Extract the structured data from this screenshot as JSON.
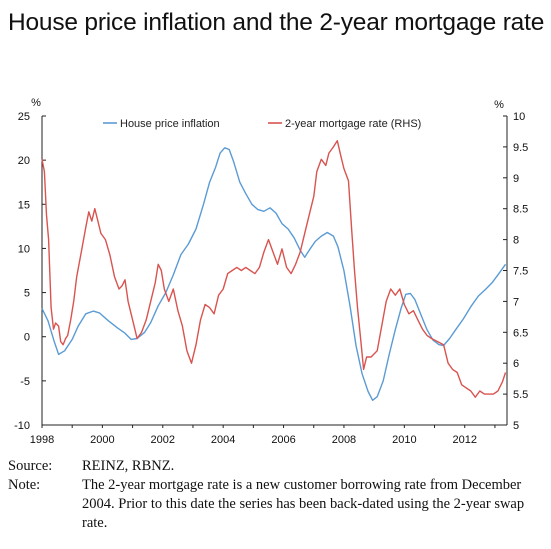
{
  "title": "House price inflation and the 2-year mortgage rate",
  "source_label": "Source:",
  "source_text": "REINZ, RBNZ.",
  "note_label": "Note:",
  "note_text": "The 2-year mortgage rate is a new customer borrowing rate from December 2004. Prior to this date the series has been back-dated using the 2-year swap rate.",
  "colors": {
    "house": "#5b9bd5",
    "mortgage": "#d9534f",
    "axis": "#222222"
  },
  "chart_data": {
    "type": "line",
    "left_unit": "%",
    "right_unit": "%",
    "xlim": [
      1998,
      2013.4
    ],
    "ylim_left": [
      -10,
      25
    ],
    "ylim_right": [
      5,
      10
    ],
    "x_ticks": [
      1998,
      2000,
      2002,
      2004,
      2006,
      2008,
      2010,
      2012
    ],
    "y_left_ticks": [
      -10,
      -5,
      0,
      5,
      10,
      15,
      20,
      25
    ],
    "y_right_ticks": [
      5,
      5.5,
      6,
      6.5,
      7,
      7.5,
      8,
      8.5,
      9,
      9.5,
      10
    ],
    "y_right_tick_labels": [
      "5",
      "5.5",
      "6",
      "6.5",
      "7",
      "7.5",
      "8",
      "8.5",
      "9",
      "9.5",
      "10"
    ],
    "legend_position": "top",
    "series": [
      {
        "name": "House price inflation",
        "axis": "left",
        "points": [
          [
            1998.0,
            3.2
          ],
          [
            1998.2,
            1.8
          ],
          [
            1998.4,
            -0.5
          ],
          [
            1998.55,
            -2.0
          ],
          [
            1998.75,
            -1.6
          ],
          [
            1999.0,
            -0.3
          ],
          [
            1999.2,
            1.2
          ],
          [
            1999.45,
            2.6
          ],
          [
            1999.7,
            2.9
          ],
          [
            1999.9,
            2.7
          ],
          [
            2000.2,
            1.8
          ],
          [
            2000.5,
            1.0
          ],
          [
            2000.75,
            0.4
          ],
          [
            2000.95,
            -0.3
          ],
          [
            2001.15,
            -0.2
          ],
          [
            2001.4,
            0.5
          ],
          [
            2001.6,
            1.6
          ],
          [
            2001.85,
            3.5
          ],
          [
            2002.1,
            5.0
          ],
          [
            2002.35,
            7.0
          ],
          [
            2002.6,
            9.3
          ],
          [
            2002.85,
            10.5
          ],
          [
            2003.1,
            12.2
          ],
          [
            2003.35,
            15.0
          ],
          [
            2003.55,
            17.5
          ],
          [
            2003.75,
            19.2
          ],
          [
            2003.9,
            20.8
          ],
          [
            2004.05,
            21.4
          ],
          [
            2004.2,
            21.2
          ],
          [
            2004.35,
            19.8
          ],
          [
            2004.55,
            17.5
          ],
          [
            2004.75,
            16.2
          ],
          [
            2004.95,
            15.0
          ],
          [
            2005.15,
            14.4
          ],
          [
            2005.35,
            14.2
          ],
          [
            2005.55,
            14.6
          ],
          [
            2005.75,
            14.0
          ],
          [
            2005.95,
            12.8
          ],
          [
            2006.15,
            12.2
          ],
          [
            2006.35,
            11.2
          ],
          [
            2006.55,
            9.8
          ],
          [
            2006.7,
            9.0
          ],
          [
            2006.85,
            9.8
          ],
          [
            2007.05,
            10.8
          ],
          [
            2007.25,
            11.4
          ],
          [
            2007.45,
            11.8
          ],
          [
            2007.65,
            11.4
          ],
          [
            2007.8,
            10.2
          ],
          [
            2008.0,
            7.5
          ],
          [
            2008.2,
            3.5
          ],
          [
            2008.4,
            -1.0
          ],
          [
            2008.6,
            -4.2
          ],
          [
            2008.8,
            -6.2
          ],
          [
            2008.95,
            -7.2
          ],
          [
            2009.1,
            -6.8
          ],
          [
            2009.3,
            -5.0
          ],
          [
            2009.5,
            -2.0
          ],
          [
            2009.7,
            0.8
          ],
          [
            2009.9,
            3.3
          ],
          [
            2010.05,
            4.8
          ],
          [
            2010.2,
            4.9
          ],
          [
            2010.35,
            4.2
          ],
          [
            2010.55,
            2.5
          ],
          [
            2010.75,
            0.8
          ],
          [
            2010.95,
            -0.4
          ],
          [
            2011.15,
            -0.9
          ],
          [
            2011.3,
            -1.0
          ],
          [
            2011.5,
            -0.2
          ],
          [
            2011.7,
            0.8
          ],
          [
            2011.95,
            2.0
          ],
          [
            2012.2,
            3.4
          ],
          [
            2012.45,
            4.6
          ],
          [
            2012.7,
            5.4
          ],
          [
            2012.9,
            6.1
          ],
          [
            2013.1,
            7.0
          ],
          [
            2013.35,
            8.2
          ]
        ]
      },
      {
        "name": "2-year mortgage rate (RHS)",
        "axis": "right",
        "points": [
          [
            1998.0,
            9.3
          ],
          [
            1998.08,
            9.1
          ],
          [
            1998.15,
            8.4
          ],
          [
            1998.22,
            8.0
          ],
          [
            1998.3,
            6.9
          ],
          [
            1998.38,
            6.55
          ],
          [
            1998.45,
            6.65
          ],
          [
            1998.55,
            6.6
          ],
          [
            1998.62,
            6.35
          ],
          [
            1998.7,
            6.3
          ],
          [
            1998.78,
            6.4
          ],
          [
            1998.85,
            6.45
          ],
          [
            1998.95,
            6.7
          ],
          [
            1999.05,
            7.0
          ],
          [
            1999.15,
            7.4
          ],
          [
            1999.3,
            7.8
          ],
          [
            1999.45,
            8.2
          ],
          [
            1999.55,
            8.45
          ],
          [
            1999.65,
            8.3
          ],
          [
            1999.75,
            8.5
          ],
          [
            1999.85,
            8.3
          ],
          [
            1999.95,
            8.1
          ],
          [
            2000.1,
            8.0
          ],
          [
            2000.25,
            7.75
          ],
          [
            2000.4,
            7.4
          ],
          [
            2000.55,
            7.2
          ],
          [
            2000.65,
            7.25
          ],
          [
            2000.75,
            7.35
          ],
          [
            2000.85,
            7.0
          ],
          [
            2000.95,
            6.8
          ],
          [
            2001.05,
            6.6
          ],
          [
            2001.15,
            6.4
          ],
          [
            2001.3,
            6.5
          ],
          [
            2001.45,
            6.7
          ],
          [
            2001.6,
            7.0
          ],
          [
            2001.75,
            7.3
          ],
          [
            2001.85,
            7.6
          ],
          [
            2001.95,
            7.5
          ],
          [
            2002.05,
            7.2
          ],
          [
            2002.2,
            7.0
          ],
          [
            2002.35,
            7.2
          ],
          [
            2002.5,
            6.85
          ],
          [
            2002.65,
            6.6
          ],
          [
            2002.8,
            6.2
          ],
          [
            2002.95,
            6.0
          ],
          [
            2003.1,
            6.3
          ],
          [
            2003.25,
            6.7
          ],
          [
            2003.4,
            6.95
          ],
          [
            2003.55,
            6.9
          ],
          [
            2003.7,
            6.8
          ],
          [
            2003.85,
            7.1
          ],
          [
            2004.0,
            7.2
          ],
          [
            2004.15,
            7.45
          ],
          [
            2004.3,
            7.5
          ],
          [
            2004.45,
            7.55
          ],
          [
            2004.6,
            7.5
          ],
          [
            2004.75,
            7.55
          ],
          [
            2004.9,
            7.5
          ],
          [
            2005.05,
            7.45
          ],
          [
            2005.2,
            7.55
          ],
          [
            2005.35,
            7.8
          ],
          [
            2005.5,
            8.0
          ],
          [
            2005.65,
            7.8
          ],
          [
            2005.8,
            7.6
          ],
          [
            2005.95,
            7.85
          ],
          [
            2006.1,
            7.55
          ],
          [
            2006.25,
            7.45
          ],
          [
            2006.4,
            7.6
          ],
          [
            2006.55,
            7.8
          ],
          [
            2006.7,
            8.1
          ],
          [
            2006.85,
            8.4
          ],
          [
            2007.0,
            8.7
          ],
          [
            2007.1,
            9.1
          ],
          [
            2007.25,
            9.3
          ],
          [
            2007.4,
            9.2
          ],
          [
            2007.5,
            9.4
          ],
          [
            2007.65,
            9.5
          ],
          [
            2007.78,
            9.6
          ],
          [
            2007.9,
            9.35
          ],
          [
            2008.0,
            9.15
          ],
          [
            2008.15,
            8.95
          ],
          [
            2008.25,
            8.2
          ],
          [
            2008.35,
            7.5
          ],
          [
            2008.45,
            6.9
          ],
          [
            2008.55,
            6.4
          ],
          [
            2008.65,
            5.9
          ],
          [
            2008.75,
            6.1
          ],
          [
            2008.9,
            6.1
          ],
          [
            2009.1,
            6.2
          ],
          [
            2009.25,
            6.6
          ],
          [
            2009.4,
            7.0
          ],
          [
            2009.55,
            7.2
          ],
          [
            2009.7,
            7.1
          ],
          [
            2009.85,
            7.2
          ],
          [
            2010.0,
            6.95
          ],
          [
            2010.15,
            6.8
          ],
          [
            2010.3,
            6.85
          ],
          [
            2010.45,
            6.7
          ],
          [
            2010.6,
            6.55
          ],
          [
            2010.75,
            6.45
          ],
          [
            2010.9,
            6.4
          ],
          [
            2011.1,
            6.35
          ],
          [
            2011.3,
            6.3
          ],
          [
            2011.45,
            6.0
          ],
          [
            2011.6,
            5.9
          ],
          [
            2011.75,
            5.85
          ],
          [
            2011.9,
            5.65
          ],
          [
            2012.05,
            5.6
          ],
          [
            2012.2,
            5.55
          ],
          [
            2012.35,
            5.45
          ],
          [
            2012.5,
            5.55
          ],
          [
            2012.65,
            5.5
          ],
          [
            2012.8,
            5.5
          ],
          [
            2012.95,
            5.5
          ],
          [
            2013.1,
            5.55
          ],
          [
            2013.25,
            5.7
          ],
          [
            2013.35,
            5.85
          ]
        ]
      }
    ]
  }
}
